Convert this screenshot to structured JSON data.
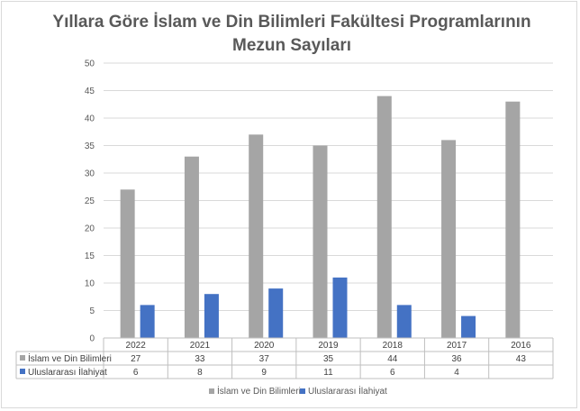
{
  "chart_data": {
    "type": "bar",
    "title_line1": "Yıllara Göre İslam ve Din Bilimleri Fakültesi Programlarının",
    "title_line2": "Mezun Sayıları",
    "categories": [
      "2022",
      "2021",
      "2020",
      "2019",
      "2018",
      "2017",
      "2016"
    ],
    "series": [
      {
        "name": "İslam ve Din Bilimleri",
        "values": [
          27,
          33,
          37,
          35,
          44,
          36,
          43
        ],
        "color": "#a5a5a5"
      },
      {
        "name": "Uluslararası İlahiyat",
        "values": [
          6,
          8,
          9,
          11,
          6,
          4,
          null
        ],
        "color": "#4472c4"
      }
    ],
    "ylim": [
      0,
      50
    ],
    "yticks": [
      0,
      5,
      10,
      15,
      20,
      25,
      30,
      35,
      40,
      45,
      50
    ],
    "grid": true,
    "legend": "bottom",
    "data_table": true
  }
}
